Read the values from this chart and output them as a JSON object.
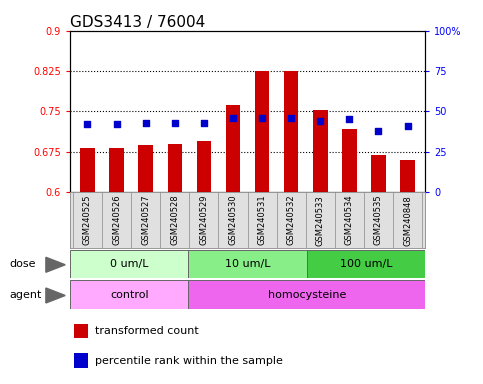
{
  "title": "GDS3413 / 76004",
  "samples": [
    "GSM240525",
    "GSM240526",
    "GSM240527",
    "GSM240528",
    "GSM240529",
    "GSM240530",
    "GSM240531",
    "GSM240532",
    "GSM240533",
    "GSM240534",
    "GSM240535",
    "GSM240848"
  ],
  "transformed_count": [
    0.682,
    0.681,
    0.688,
    0.69,
    0.695,
    0.762,
    0.825,
    0.825,
    0.752,
    0.718,
    0.668,
    0.66
  ],
  "percentile_rank": [
    42,
    42,
    43,
    43,
    43,
    46,
    46,
    46,
    44,
    45,
    38,
    41
  ],
  "ylim_left": [
    0.6,
    0.9
  ],
  "ylim_right": [
    0,
    100
  ],
  "yticks_left": [
    0.6,
    0.675,
    0.75,
    0.825,
    0.9
  ],
  "yticks_right": [
    0,
    25,
    50,
    75,
    100
  ],
  "bar_color": "#cc0000",
  "dot_color": "#0000cc",
  "dose_groups": [
    {
      "label": "0 um/L",
      "start": 0,
      "end": 4
    },
    {
      "label": "10 um/L",
      "start": 4,
      "end": 8
    },
    {
      "label": "100 um/L",
      "start": 8,
      "end": 12
    }
  ],
  "dose_colors": [
    "#ccffcc",
    "#88ee88",
    "#44cc44"
  ],
  "agent_groups": [
    {
      "label": "control",
      "start": 0,
      "end": 4
    },
    {
      "label": "homocysteine",
      "start": 4,
      "end": 12
    }
  ],
  "agent_colors": [
    "#ffaaff",
    "#ee66ee"
  ],
  "title_fontsize": 11,
  "tick_fontsize": 7,
  "sample_fontsize": 6,
  "panel_fontsize": 8
}
